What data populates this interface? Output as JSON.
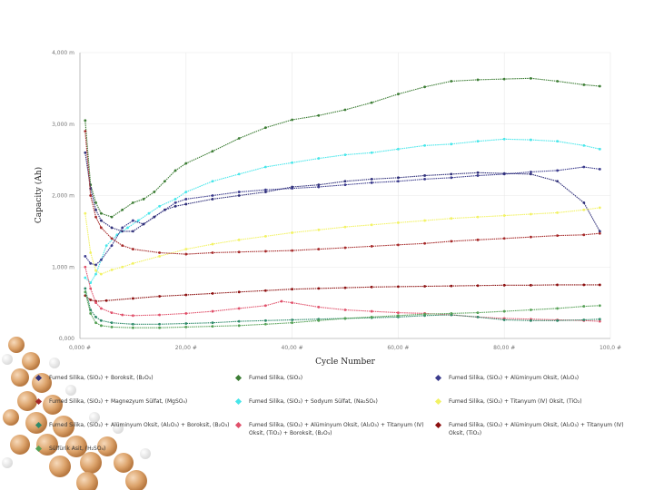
{
  "chart_data": {
    "type": "line",
    "xlabel": "Cycle Number",
    "ylabel": "Capacity (Ah)",
    "xlim": [
      0,
      100
    ],
    "ylim": [
      0,
      4000
    ],
    "x_ticks": [
      0,
      20,
      40,
      60,
      80,
      100
    ],
    "x_tick_labels": [
      "0,000 #",
      "20,00 #",
      "40,00 #",
      "60,00 #",
      "80,00 #",
      "100,0 #"
    ],
    "y_ticks": [
      0,
      1000,
      2000,
      3000,
      4000
    ],
    "y_tick_labels": [
      "0,000",
      "1,000 m",
      "2,000 m",
      "3,000 m",
      "4,000 m"
    ],
    "series": [
      {
        "name": "Fumed Silika, (SiO₂)",
        "color": "#3c7d34",
        "points": [
          [
            1,
            3050
          ],
          [
            2,
            2150
          ],
          [
            3,
            1900
          ],
          [
            4,
            1750
          ],
          [
            6,
            1700
          ],
          [
            8,
            1800
          ],
          [
            10,
            1900
          ],
          [
            12,
            1950
          ],
          [
            14,
            2050
          ],
          [
            16,
            2200
          ],
          [
            18,
            2350
          ],
          [
            20,
            2450
          ],
          [
            25,
            2620
          ],
          [
            30,
            2800
          ],
          [
            35,
            2950
          ],
          [
            40,
            3060
          ],
          [
            45,
            3120
          ],
          [
            50,
            3200
          ],
          [
            55,
            3300
          ],
          [
            60,
            3420
          ],
          [
            65,
            3520
          ],
          [
            70,
            3600
          ],
          [
            75,
            3620
          ],
          [
            80,
            3630
          ],
          [
            85,
            3640
          ],
          [
            90,
            3600
          ],
          [
            95,
            3550
          ],
          [
            98,
            3530
          ]
        ]
      },
      {
        "name": "Fumed Silika, (SiO₂) + Sodyum Sülfat, (Na₂SO₄)",
        "color": "#47e6ea",
        "points": [
          [
            1,
            850
          ],
          [
            2,
            780
          ],
          [
            3,
            900
          ],
          [
            4,
            1100
          ],
          [
            5,
            1300
          ],
          [
            7,
            1450
          ],
          [
            9,
            1550
          ],
          [
            11,
            1650
          ],
          [
            13,
            1750
          ],
          [
            15,
            1850
          ],
          [
            18,
            1950
          ],
          [
            20,
            2050
          ],
          [
            25,
            2200
          ],
          [
            30,
            2300
          ],
          [
            35,
            2400
          ],
          [
            40,
            2460
          ],
          [
            45,
            2520
          ],
          [
            50,
            2570
          ],
          [
            55,
            2600
          ],
          [
            60,
            2650
          ],
          [
            65,
            2700
          ],
          [
            70,
            2720
          ],
          [
            75,
            2760
          ],
          [
            80,
            2790
          ],
          [
            85,
            2780
          ],
          [
            90,
            2760
          ],
          [
            95,
            2700
          ],
          [
            98,
            2650
          ]
        ]
      },
      {
        "name": "Fumed Silika, (SiO₂) + Alüminyum Oksit, (Al₂O₃)",
        "color": "#3a3a8c",
        "points": [
          [
            1,
            1150
          ],
          [
            2,
            1050
          ],
          [
            3,
            1030
          ],
          [
            4,
            1100
          ],
          [
            6,
            1300
          ],
          [
            8,
            1550
          ],
          [
            10,
            1650
          ],
          [
            12,
            1600
          ],
          [
            14,
            1700
          ],
          [
            16,
            1800
          ],
          [
            18,
            1900
          ],
          [
            20,
            1950
          ],
          [
            25,
            2000
          ],
          [
            30,
            2050
          ],
          [
            35,
            2080
          ],
          [
            40,
            2100
          ],
          [
            45,
            2120
          ],
          [
            50,
            2150
          ],
          [
            55,
            2180
          ],
          [
            60,
            2200
          ],
          [
            65,
            2230
          ],
          [
            70,
            2250
          ],
          [
            75,
            2280
          ],
          [
            80,
            2300
          ],
          [
            85,
            2330
          ],
          [
            90,
            2350
          ],
          [
            95,
            2400
          ],
          [
            98,
            2370
          ]
        ]
      },
      {
        "name": "Fumed Silika, (SiO₂) + Boroksit, (B₂O₃)",
        "color": "#30307a",
        "points": [
          [
            1,
            2600
          ],
          [
            2,
            2100
          ],
          [
            3,
            1800
          ],
          [
            4,
            1650
          ],
          [
            6,
            1550
          ],
          [
            8,
            1500
          ],
          [
            10,
            1500
          ],
          [
            12,
            1600
          ],
          [
            14,
            1700
          ],
          [
            16,
            1800
          ],
          [
            18,
            1850
          ],
          [
            20,
            1880
          ],
          [
            25,
            1950
          ],
          [
            30,
            2000
          ],
          [
            35,
            2050
          ],
          [
            40,
            2120
          ],
          [
            45,
            2150
          ],
          [
            50,
            2200
          ],
          [
            55,
            2230
          ],
          [
            60,
            2250
          ],
          [
            65,
            2280
          ],
          [
            70,
            2300
          ],
          [
            75,
            2320
          ],
          [
            80,
            2310
          ],
          [
            85,
            2300
          ],
          [
            90,
            2200
          ],
          [
            95,
            1900
          ],
          [
            98,
            1500
          ]
        ]
      },
      {
        "name": "Fumed Silika, (SiO₂) + Titanyum (IV) Oksit, (TiO₂)",
        "color": "#f2f264",
        "points": [
          [
            1,
            1750
          ],
          [
            2,
            1200
          ],
          [
            3,
            950
          ],
          [
            4,
            900
          ],
          [
            6,
            960
          ],
          [
            8,
            1000
          ],
          [
            10,
            1050
          ],
          [
            15,
            1150
          ],
          [
            20,
            1250
          ],
          [
            25,
            1320
          ],
          [
            30,
            1380
          ],
          [
            35,
            1430
          ],
          [
            40,
            1480
          ],
          [
            45,
            1520
          ],
          [
            50,
            1560
          ],
          [
            55,
            1590
          ],
          [
            60,
            1620
          ],
          [
            65,
            1650
          ],
          [
            70,
            1680
          ],
          [
            75,
            1700
          ],
          [
            80,
            1720
          ],
          [
            85,
            1740
          ],
          [
            90,
            1760
          ],
          [
            95,
            1800
          ],
          [
            98,
            1830
          ]
        ]
      },
      {
        "name": "Fumed Silika, (SiO₂) + Magnezyum Sülfat, (MgSO₄)",
        "color": "#a52828",
        "points": [
          [
            1,
            2900
          ],
          [
            2,
            2000
          ],
          [
            3,
            1700
          ],
          [
            4,
            1550
          ],
          [
            6,
            1400
          ],
          [
            8,
            1300
          ],
          [
            10,
            1250
          ],
          [
            15,
            1200
          ],
          [
            20,
            1180
          ],
          [
            25,
            1200
          ],
          [
            30,
            1210
          ],
          [
            35,
            1220
          ],
          [
            40,
            1230
          ],
          [
            45,
            1250
          ],
          [
            50,
            1270
          ],
          [
            55,
            1290
          ],
          [
            60,
            1310
          ],
          [
            65,
            1330
          ],
          [
            70,
            1360
          ],
          [
            75,
            1380
          ],
          [
            80,
            1400
          ],
          [
            85,
            1420
          ],
          [
            90,
            1440
          ],
          [
            95,
            1450
          ],
          [
            98,
            1470
          ]
        ]
      },
      {
        "name": "Fumed Silika, (SiO₂) + Alüminyum Oksit, (Al₂O₃) + Titanyum (IV) Oksit, (TiO₂)",
        "color": "#8c1010",
        "points": [
          [
            1,
            600
          ],
          [
            2,
            540
          ],
          [
            3,
            520
          ],
          [
            5,
            530
          ],
          [
            10,
            560
          ],
          [
            15,
            590
          ],
          [
            20,
            610
          ],
          [
            25,
            630
          ],
          [
            30,
            650
          ],
          [
            35,
            670
          ],
          [
            40,
            690
          ],
          [
            45,
            700
          ],
          [
            50,
            710
          ],
          [
            55,
            720
          ],
          [
            60,
            725
          ],
          [
            65,
            730
          ],
          [
            70,
            735
          ],
          [
            75,
            740
          ],
          [
            80,
            745
          ],
          [
            85,
            745
          ],
          [
            90,
            750
          ],
          [
            95,
            750
          ],
          [
            98,
            750
          ]
        ]
      },
      {
        "name": "Fumed Silika, (SiO₂) + Alüminyum Oksit, (Al₂O₃) + Titanyum (IV) Oksit, (TiO₂) + Boroksit, (B₂O₃)",
        "color": "#e0506a",
        "points": [
          [
            1,
            1000
          ],
          [
            2,
            700
          ],
          [
            3,
            500
          ],
          [
            4,
            420
          ],
          [
            6,
            360
          ],
          [
            8,
            330
          ],
          [
            10,
            320
          ],
          [
            15,
            330
          ],
          [
            20,
            350
          ],
          [
            25,
            380
          ],
          [
            30,
            420
          ],
          [
            35,
            460
          ],
          [
            38,
            520
          ],
          [
            40,
            500
          ],
          [
            45,
            440
          ],
          [
            50,
            400
          ],
          [
            55,
            380
          ],
          [
            60,
            360
          ],
          [
            65,
            350
          ],
          [
            70,
            330
          ],
          [
            75,
            300
          ],
          [
            80,
            280
          ],
          [
            85,
            270
          ],
          [
            90,
            260
          ],
          [
            95,
            250
          ],
          [
            98,
            240
          ]
        ]
      },
      {
        "name": "Fumed Silika, (SiO₂) + Alüminyum Oksit, (Al₂O₃) + Boroksit, (B₂O₃)",
        "color": "#2e8a6a",
        "points": [
          [
            1,
            700
          ],
          [
            2,
            400
          ],
          [
            3,
            300
          ],
          [
            4,
            250
          ],
          [
            6,
            220
          ],
          [
            10,
            200
          ],
          [
            15,
            200
          ],
          [
            20,
            210
          ],
          [
            25,
            220
          ],
          [
            30,
            240
          ],
          [
            35,
            250
          ],
          [
            40,
            260
          ],
          [
            45,
            270
          ],
          [
            50,
            280
          ],
          [
            55,
            290
          ],
          [
            60,
            300
          ],
          [
            65,
            320
          ],
          [
            70,
            330
          ],
          [
            75,
            300
          ],
          [
            80,
            260
          ],
          [
            85,
            250
          ],
          [
            90,
            250
          ],
          [
            95,
            260
          ],
          [
            98,
            270
          ]
        ]
      },
      {
        "name": "Sülfürik Asit, (H₂SO₄)",
        "color": "#55a055",
        "points": [
          [
            1,
            650
          ],
          [
            2,
            350
          ],
          [
            3,
            220
          ],
          [
            4,
            180
          ],
          [
            6,
            160
          ],
          [
            10,
            150
          ],
          [
            15,
            150
          ],
          [
            20,
            160
          ],
          [
            25,
            170
          ],
          [
            30,
            180
          ],
          [
            35,
            200
          ],
          [
            40,
            220
          ],
          [
            45,
            250
          ],
          [
            50,
            280
          ],
          [
            55,
            300
          ],
          [
            60,
            320
          ],
          [
            65,
            340
          ],
          [
            70,
            350
          ],
          [
            75,
            360
          ],
          [
            80,
            380
          ],
          [
            85,
            400
          ],
          [
            90,
            420
          ],
          [
            95,
            450
          ],
          [
            98,
            460
          ]
        ]
      }
    ]
  }
}
